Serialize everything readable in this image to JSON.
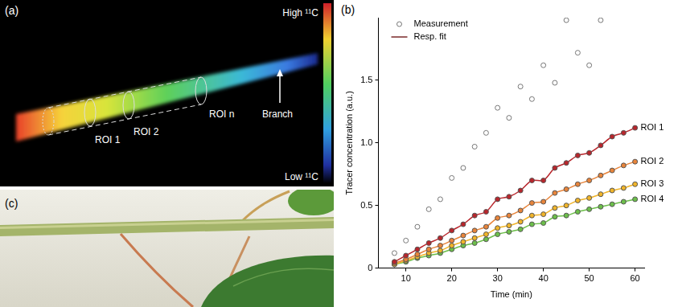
{
  "chart_data": {
    "type": "scatter",
    "panel_label": "(b)",
    "x_label": "Time (min)",
    "y_label": "Tracer concentration (a.u.)",
    "x": [
      7.5,
      10,
      12.5,
      15,
      17.5,
      20,
      22.5,
      25,
      27.5,
      30,
      32.5,
      35,
      37.5,
      40,
      42.5,
      45,
      47.5,
      50,
      52.5,
      55,
      57.5,
      60
    ],
    "series": [
      {
        "color": "#777777",
        "marker": "circle",
        "line_style": "none",
        "values": [
          0.12,
          0.22,
          0.33,
          0.47,
          0.55,
          0.72,
          0.8,
          0.97,
          1.08,
          1.28,
          1.2,
          1.45,
          1.35,
          1.62,
          1.48,
          1.98,
          1.72,
          1.62,
          1.98,
          null,
          null,
          null
        ]
      },
      {
        "name": "ROI 1",
        "color": "#b8262c",
        "marker": "circle",
        "line_style": "solid",
        "values": [
          0.05,
          0.1,
          0.15,
          0.2,
          0.24,
          0.3,
          0.35,
          0.42,
          0.45,
          0.55,
          0.57,
          0.62,
          0.7,
          0.7,
          0.8,
          0.84,
          0.9,
          0.92,
          0.98,
          1.05,
          1.08,
          1.12
        ]
      },
      {
        "name": "ROI 2",
        "color": "#e8843a",
        "marker": "circle",
        "line_style": "solid",
        "values": [
          0.04,
          0.07,
          0.11,
          0.15,
          0.18,
          0.22,
          0.26,
          0.3,
          0.33,
          0.4,
          0.42,
          0.46,
          0.52,
          0.53,
          0.6,
          0.63,
          0.67,
          0.7,
          0.74,
          0.78,
          0.82,
          0.85
        ]
      },
      {
        "name": "ROI 3",
        "color": "#f0b429",
        "marker": "circle",
        "line_style": "solid",
        "values": [
          0.03,
          0.06,
          0.09,
          0.12,
          0.14,
          0.18,
          0.21,
          0.24,
          0.27,
          0.32,
          0.34,
          0.37,
          0.42,
          0.43,
          0.48,
          0.5,
          0.54,
          0.56,
          0.59,
          0.62,
          0.64,
          0.67
        ]
      },
      {
        "name": "ROI 4",
        "color": "#6cbf4a",
        "marker": "circle",
        "line_style": "solid",
        "values": [
          0.03,
          0.05,
          0.08,
          0.1,
          0.12,
          0.15,
          0.18,
          0.2,
          0.23,
          0.27,
          0.29,
          0.31,
          0.35,
          0.36,
          0.41,
          0.42,
          0.45,
          0.47,
          0.49,
          0.51,
          0.53,
          0.55
        ]
      }
    ],
    "legend": "upper left",
    "legend_items": [
      {
        "label": "Measurement",
        "marker": "circle",
        "color": "#777777"
      },
      {
        "label": "Resp. fit",
        "line_style": "solid",
        "color": "#7a2a2a"
      }
    ],
    "xlim": [
      4,
      62
    ],
    "xticks": [
      10,
      20,
      30,
      40,
      50,
      60
    ],
    "ylim": [
      0,
      2
    ],
    "yticks": [
      0,
      0.5,
      1,
      1.5
    ],
    "grid": false
  },
  "panel_a": {
    "label": "(a)",
    "colorbar": {
      "high": "High ¹¹C",
      "low": "Low ¹¹C"
    },
    "roi_labels": [
      "ROI 1",
      "ROI 2",
      "ROI n"
    ],
    "annotation": "Branch"
  },
  "panel_c": {
    "label": "(c)"
  }
}
